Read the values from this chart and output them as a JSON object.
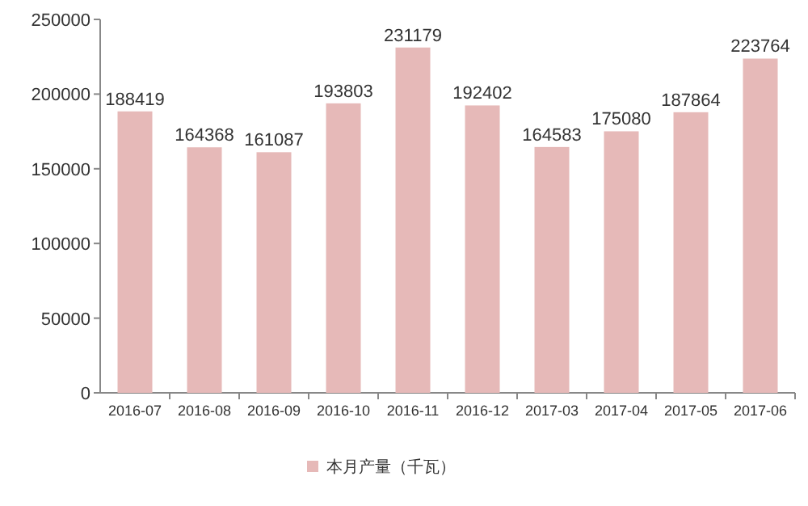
{
  "chart_data": {
    "type": "bar",
    "categories": [
      "2016-07",
      "2016-08",
      "2016-09",
      "2016-10",
      "2016-11",
      "2016-12",
      "2017-03",
      "2017-04",
      "2017-05",
      "2017-06"
    ],
    "series": [
      {
        "name": "本月产量（千瓦）",
        "color": "#e6b9b8",
        "values": [
          188419,
          164368,
          161087,
          193803,
          231179,
          192402,
          164583,
          175080,
          187864,
          223764
        ]
      }
    ],
    "ylim": [
      0,
      250000
    ],
    "yticks": [
      0,
      50000,
      100000,
      150000,
      200000,
      250000
    ],
    "data_labels": true,
    "legend": "bottom"
  }
}
